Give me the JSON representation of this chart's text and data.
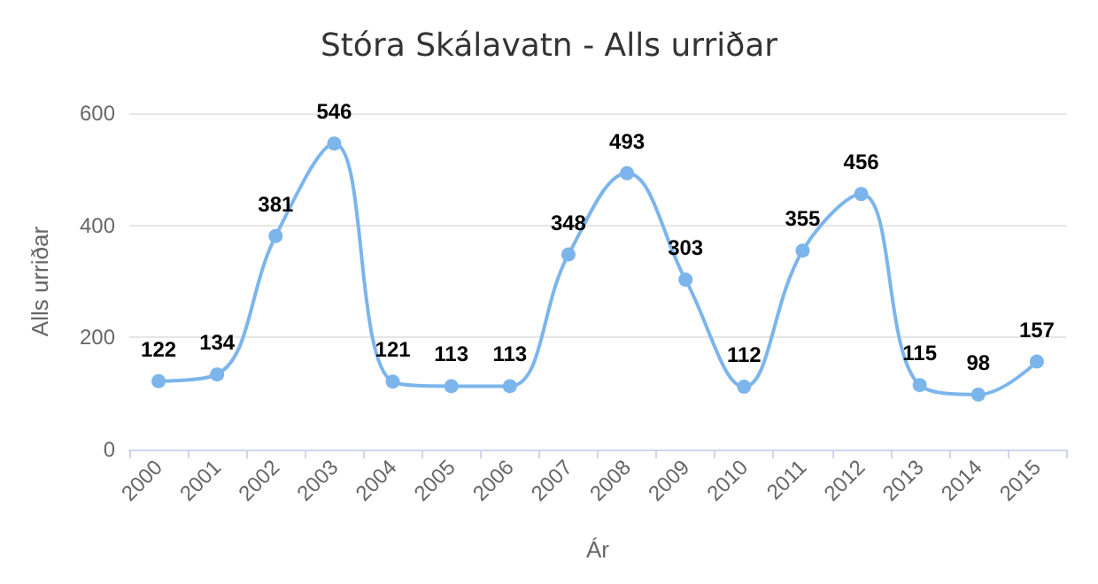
{
  "chart_data": {
    "type": "line",
    "title": "Stóra Skálavatn - Alls urriðar",
    "xlabel": "Ár",
    "ylabel": "Alls urriðar",
    "categories": [
      "2000",
      "2001",
      "2002",
      "2003",
      "2004",
      "2005",
      "2006",
      "2007",
      "2008",
      "2009",
      "2010",
      "2011",
      "2012",
      "2013",
      "2014",
      "2015"
    ],
    "series": [
      {
        "color": "#7cb5ec",
        "values": [
          122,
          134,
          381,
          546,
          121,
          113,
          113,
          348,
          493,
          303,
          112,
          355,
          456,
          115,
          98,
          157
        ]
      }
    ],
    "ylim": [
      0,
      600
    ],
    "yticks": [
      0,
      200,
      400,
      600
    ],
    "grid": "y",
    "data_labels": true,
    "marker": "circle",
    "line_style": "solid"
  }
}
